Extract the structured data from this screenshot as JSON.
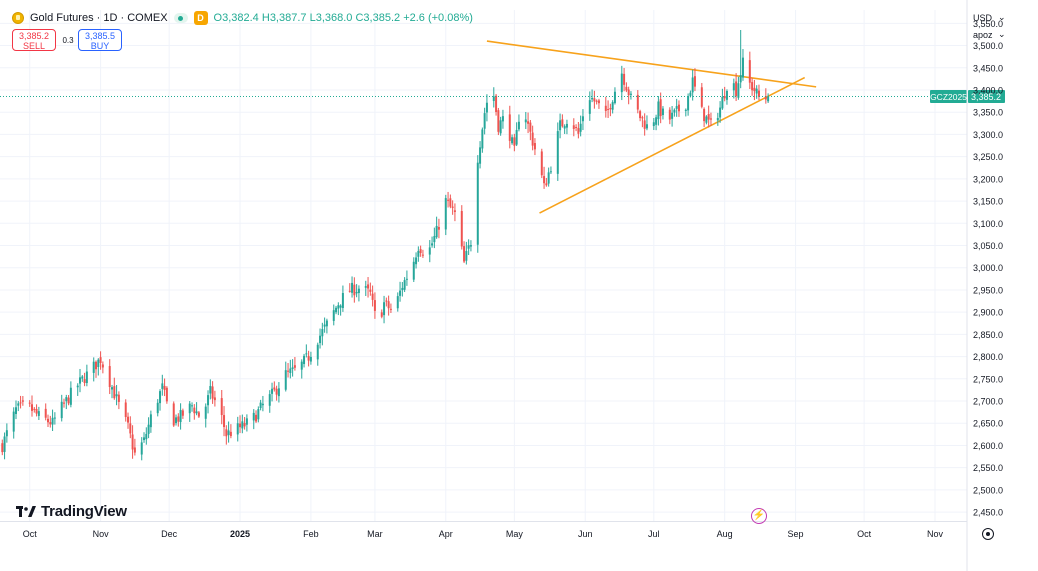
{
  "header": {
    "title": "Gold Futures · 1D · COMEX",
    "badge": "D",
    "ohlc_open": "O3,382.4",
    "ohlc_high": "H3,387.7",
    "ohlc_low": "L3,368.0",
    "ohlc_close": "C3,385.2",
    "ohlc_change": "+2.6 (+0.08%)"
  },
  "trade": {
    "sell_price": "3,385.2",
    "sell_label": "SELL",
    "spread": "0.3",
    "buy_price": "3,385.5",
    "buy_label": "BUY"
  },
  "scale": {
    "currency": "USD",
    "mode": "apoz"
  },
  "brand": "TradingView",
  "colors": {
    "up": "#26a69a",
    "down": "#ef5350",
    "trendline": "#f7a21b",
    "label_bg": "#22ab94",
    "grid": "#f0f3fa",
    "axis_text": "#131722"
  },
  "chart_data": {
    "type": "candlestick",
    "title": "Gold Futures · 1D · COMEX",
    "symbol_label": "GCZ2025",
    "last_price_label": "3,385.2",
    "last_price": 3385.2,
    "ylim": [
      2430,
      3580
    ],
    "y_ticks": [
      "2,450.0",
      "2,500.0",
      "2,550.0",
      "2,600.0",
      "2,650.0",
      "2,700.0",
      "2,750.0",
      "2,800.0",
      "2,850.0",
      "2,900.0",
      "2,950.0",
      "3,000.0",
      "3,050.0",
      "3,100.0",
      "3,150.0",
      "3,200.0",
      "3,250.0",
      "3,300.0",
      "3,350.0",
      "3,400.0",
      "3,450.0",
      "3,500.0",
      "3,550.0"
    ],
    "x_ticks": [
      {
        "label": "Oct",
        "day": 0
      },
      {
        "label": "Nov",
        "day": 31
      },
      {
        "label": "Dec",
        "day": 61
      },
      {
        "label": "2025",
        "day": 92
      },
      {
        "label": "Feb",
        "day": 123
      },
      {
        "label": "Mar",
        "day": 151
      },
      {
        "label": "Apr",
        "day": 182
      },
      {
        "label": "May",
        "day": 212
      },
      {
        "label": "Jun",
        "day": 243
      },
      {
        "label": "Jul",
        "day": 273
      },
      {
        "label": "Aug",
        "day": 304
      },
      {
        "label": "Sep",
        "day": 335
      },
      {
        "label": "Oct",
        "day": 365
      },
      {
        "label": "Nov",
        "day": 396
      }
    ],
    "x_range_days": [
      -13,
      410
    ],
    "trendlines": [
      {
        "name": "upper",
        "start": {
          "day": 200,
          "price": 3510
        },
        "end": {
          "day": 344,
          "price": 3407
        }
      },
      {
        "name": "lower",
        "start": {
          "day": 223,
          "price": 3123
        },
        "end": {
          "day": 339,
          "price": 3428
        }
      }
    ],
    "close_path": [
      {
        "day": -12,
        "price": 2600
      },
      {
        "day": -6,
        "price": 2680
      },
      {
        "day": -1,
        "price": 2690
      },
      {
        "day": 4,
        "price": 2665
      },
      {
        "day": 10,
        "price": 2650
      },
      {
        "day": 14,
        "price": 2685
      },
      {
        "day": 20,
        "price": 2730
      },
      {
        "day": 26,
        "price": 2765
      },
      {
        "day": 31,
        "price": 2795
      },
      {
        "day": 35,
        "price": 2745
      },
      {
        "day": 39,
        "price": 2690
      },
      {
        "day": 43,
        "price": 2640
      },
      {
        "day": 46,
        "price": 2580
      },
      {
        "day": 50,
        "price": 2610
      },
      {
        "day": 54,
        "price": 2680
      },
      {
        "day": 58,
        "price": 2730
      },
      {
        "day": 62,
        "price": 2655
      },
      {
        "day": 66,
        "price": 2665
      },
      {
        "day": 71,
        "price": 2690
      },
      {
        "day": 75,
        "price": 2660
      },
      {
        "day": 79,
        "price": 2720
      },
      {
        "day": 83,
        "price": 2680
      },
      {
        "day": 86,
        "price": 2625
      },
      {
        "day": 92,
        "price": 2640
      },
      {
        "day": 97,
        "price": 2655
      },
      {
        "day": 102,
        "price": 2690
      },
      {
        "day": 107,
        "price": 2720
      },
      {
        "day": 112,
        "price": 2760
      },
      {
        "day": 117,
        "price": 2770
      },
      {
        "day": 122,
        "price": 2800
      },
      {
        "day": 126,
        "price": 2840
      },
      {
        "day": 131,
        "price": 2880
      },
      {
        "day": 135,
        "price": 2920
      },
      {
        "day": 140,
        "price": 2950
      },
      {
        "day": 145,
        "price": 2955
      },
      {
        "day": 149,
        "price": 2940
      },
      {
        "day": 152,
        "price": 2870
      },
      {
        "day": 155,
        "price": 2920
      },
      {
        "day": 159,
        "price": 2900
      },
      {
        "day": 163,
        "price": 2960
      },
      {
        "day": 167,
        "price": 3000
      },
      {
        "day": 170,
        "price": 3050
      },
      {
        "day": 174,
        "price": 3030
      },
      {
        "day": 178,
        "price": 3080
      },
      {
        "day": 182,
        "price": 3150
      },
      {
        "day": 186,
        "price": 3120
      },
      {
        "day": 190,
        "price": 3010
      },
      {
        "day": 193,
        "price": 3060
      },
      {
        "day": 196,
        "price": 3250
      },
      {
        "day": 199,
        "price": 3350
      },
      {
        "day": 202,
        "price": 3420
      },
      {
        "day": 205,
        "price": 3320
      },
      {
        "day": 208,
        "price": 3340
      },
      {
        "day": 212,
        "price": 3260
      },
      {
        "day": 215,
        "price": 3380
      },
      {
        "day": 218,
        "price": 3320
      },
      {
        "day": 222,
        "price": 3250
      },
      {
        "day": 225,
        "price": 3180
      },
      {
        "day": 228,
        "price": 3230
      },
      {
        "day": 232,
        "price": 3320
      },
      {
        "day": 236,
        "price": 3340
      },
      {
        "day": 240,
        "price": 3300
      },
      {
        "day": 244,
        "price": 3390
      },
      {
        "day": 248,
        "price": 3370
      },
      {
        "day": 252,
        "price": 3340
      },
      {
        "day": 256,
        "price": 3400
      },
      {
        "day": 259,
        "price": 3440
      },
      {
        "day": 263,
        "price": 3380
      },
      {
        "day": 267,
        "price": 3340
      },
      {
        "day": 271,
        "price": 3310
      },
      {
        "day": 275,
        "price": 3360
      },
      {
        "day": 279,
        "price": 3330
      },
      {
        "day": 283,
        "price": 3350
      },
      {
        "day": 287,
        "price": 3370
      },
      {
        "day": 290,
        "price": 3420
      },
      {
        "day": 294,
        "price": 3350
      },
      {
        "day": 298,
        "price": 3320
      },
      {
        "day": 302,
        "price": 3360
      },
      {
        "day": 306,
        "price": 3430
      },
      {
        "day": 309,
        "price": 3400
      },
      {
        "day": 312,
        "price": 3460
      },
      {
        "day": 314,
        "price": 3420
      },
      {
        "day": 317,
        "price": 3400
      },
      {
        "day": 320,
        "price": 3375
      },
      {
        "day": 323,
        "price": 3385
      }
    ]
  }
}
